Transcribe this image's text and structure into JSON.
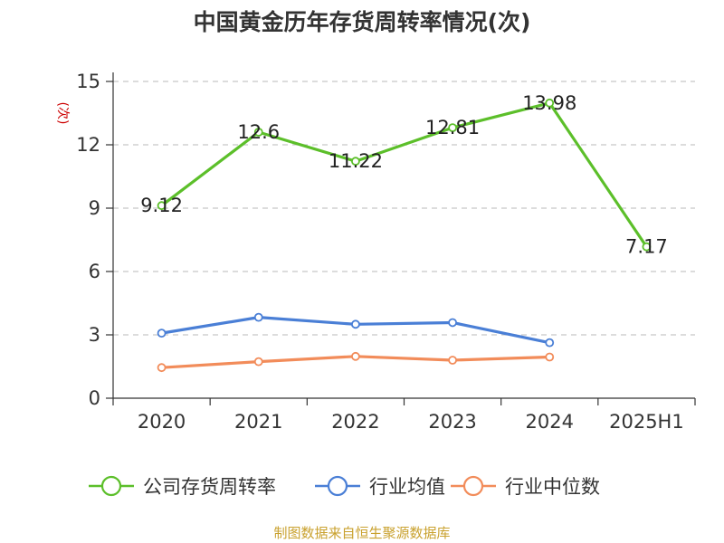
{
  "chart_data": {
    "type": "line",
    "title": "中国黄金历年存货周转率情况(次)",
    "ylabel": "(次)",
    "xlabel": "",
    "categories": [
      "2020",
      "2021",
      "2022",
      "2023",
      "2024",
      "2025H1"
    ],
    "ylim": [
      0,
      15
    ],
    "yticks": [
      "0",
      "3",
      "6",
      "9",
      "12",
      "15"
    ],
    "grid": true,
    "legend_position": "bottom",
    "series": [
      {
        "name": "公司存货周转率",
        "color": "#5cbf2a",
        "values": [
          9.12,
          12.6,
          11.22,
          12.81,
          13.98,
          7.17
        ],
        "labels": [
          "9.12",
          "12.6",
          "11.22",
          "12.81",
          "13.98",
          "7.17"
        ]
      },
      {
        "name": "行业均值",
        "color": "#4a7fd6",
        "values": [
          3.08,
          3.83,
          3.5,
          3.58,
          2.63,
          null
        ]
      },
      {
        "name": "行业中位数",
        "color": "#f28c5a",
        "values": [
          1.45,
          1.73,
          1.98,
          1.8,
          1.95,
          null
        ]
      }
    ],
    "source": "制图数据来自恒生聚源数据库",
    "unit_color": "#cc0000",
    "source_color": "#c9a12e"
  }
}
